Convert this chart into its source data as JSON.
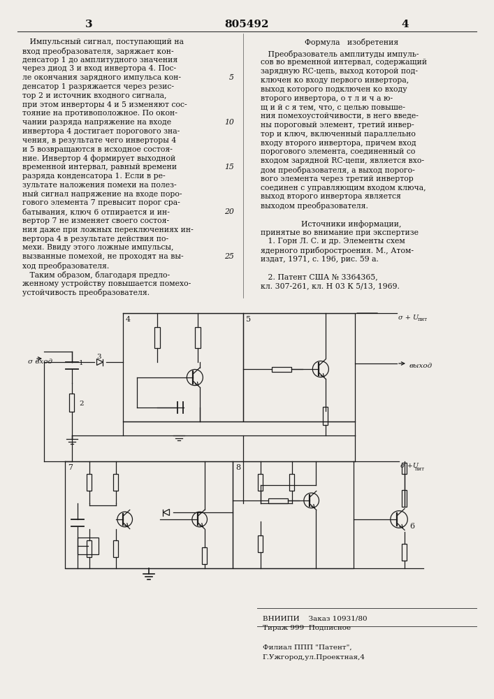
{
  "page_number_left": "3",
  "patent_number": "805492",
  "page_number_right": "4",
  "left_col_lines": [
    "   Импульсный сигнал, поступающий на",
    "вход преобразователя, заряжает кон-",
    "денсатор 1 до амплитудного значения",
    "через диод 3 и вход инвертора 4. Пос-",
    "ле окончания зарядного импульса кон-",
    "денсатор 1 разряжается через резис-",
    "тор 2 и источник входного сигнала,",
    "при этом инверторы 4 и 5 изменяют сос-",
    "тояние на противоположное. По окон-",
    "чании разряда напряжение на входе",
    "инвертора 4 достигает порогового зна-",
    "чения, в результате чего инверторы 4",
    "и 5 возвращаются в исходное состоя-",
    "ние. Инвертор 4 формирует выходной",
    "временной интервал, равный времени",
    "разряда конденсатора 1. Если в ре-",
    "зультате наложения помехи на полез-",
    "ный сигнал напряжение на входе поро-",
    "гового элемента 7 превысит порог сра-",
    "батывания, ключ 6 отпирается и ин-",
    "вертор 7 не изменяет своего состоя-",
    "ния даже при ложных переключениях ин-",
    "вертора 4 в результате действия по-",
    "мехи. Ввиду этого ложные импульсы,",
    "вызванные помехой, не проходят на вы-",
    "ход преобразователя.",
    "   Таким образом, благодаря предло-",
    "женному устройству повышается помехо-",
    "устойчивость преобразователя."
  ],
  "right_col_header": "Формула   изобретения",
  "right_col_lines": [
    "   Преобразователь амплитуды импуль-",
    "сов во временной интервал, содержащий",
    "зарядную RC-цепь, выход которой под-",
    "ключен ко входу первого инвертора,",
    "выход которого подключен ко входу",
    "второго инвертора, о т л и ч а ю-",
    "щ и й с я тем, что, с целью повыше-",
    "ния помехоустойчивости, в него введе-",
    "ны пороговый элемент, третий инвер-",
    "тор и ключ, включенный параллельно",
    "входу второго инвертора, причем вход",
    "порогового элемента, соединенный со",
    "входом зарядной RC-цепи, является вхо-",
    "дом преобразователя, а выход порого-",
    "вого элемента через третий инвертор",
    "соединен с управляющим входом ключа,",
    "выход второго инвертора является",
    "выходом преобразователя."
  ],
  "sources_header": "Источники информации,",
  "sources_lines": [
    "принятые во внимание при экспертизе",
    "   1. Горн Л. С. и др. Элементы схем",
    "ядерного приборостроения. М., Атом-",
    "издат, 1971, с. 196, рис. 59 а.",
    "",
    "   2. Патент США № 3364365,",
    "кл. 307-261, кл. Н 03 К 5/13, 1969."
  ],
  "footer_line1": "ВНИИПИ    Заказ 10931/80",
  "footer_line2": "Тираж 999  Подписное",
  "footer_line3": "Филиал ППП \"Патент\",",
  "footer_line4": "Г.Ужгород,ул.Проектная,4",
  "bg": "#f5f5f0",
  "fg": "#111111"
}
